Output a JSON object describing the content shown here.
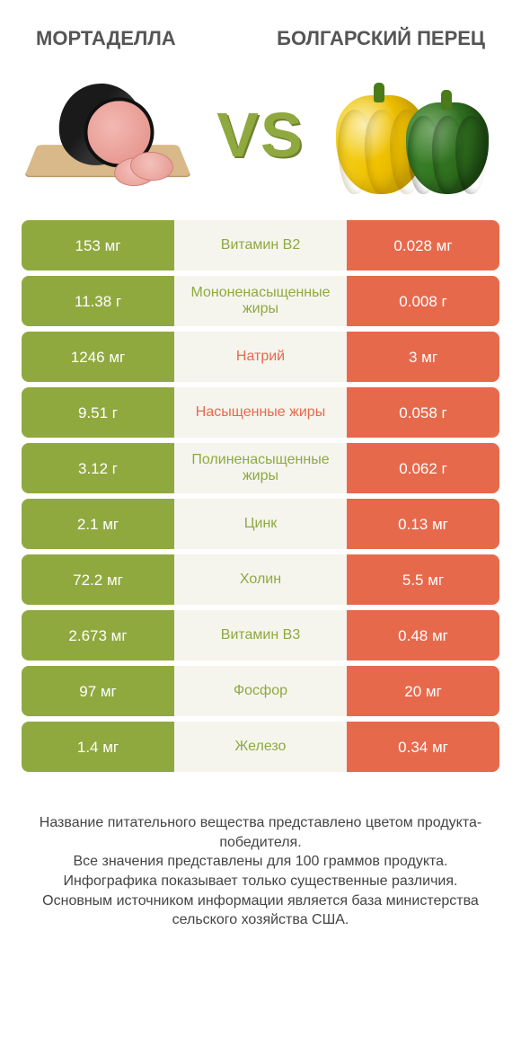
{
  "colors": {
    "left": "#8fa93f",
    "right": "#e7694c",
    "mid_bg": "#f5f5ee",
    "vs": "#8fa93f"
  },
  "header": {
    "left": "МОРТАДЕЛЛА",
    "right": "БОЛГАРСКИЙ ПЕРЕЦ"
  },
  "vs_label": "VS",
  "rows": [
    {
      "left": "153 мг",
      "label": "Витамин B2",
      "right": "0.028 мг",
      "winner": "left"
    },
    {
      "left": "11.38 г",
      "label": "Мононенасыщенные жиры",
      "right": "0.008 г",
      "winner": "left"
    },
    {
      "left": "1246 мг",
      "label": "Натрий",
      "right": "3 мг",
      "winner": "right"
    },
    {
      "left": "9.51 г",
      "label": "Насыщенные жиры",
      "right": "0.058 г",
      "winner": "right"
    },
    {
      "left": "3.12 г",
      "label": "Полиненасыщенные жиры",
      "right": "0.062 г",
      "winner": "left"
    },
    {
      "left": "2.1 мг",
      "label": "Цинк",
      "right": "0.13 мг",
      "winner": "left"
    },
    {
      "left": "72.2 мг",
      "label": "Холин",
      "right": "5.5 мг",
      "winner": "left"
    },
    {
      "left": "2.673 мг",
      "label": "Витамин B3",
      "right": "0.48 мг",
      "winner": "left"
    },
    {
      "left": "97 мг",
      "label": "Фосфор",
      "right": "20 мг",
      "winner": "left"
    },
    {
      "left": "1.4 мг",
      "label": "Железо",
      "right": "0.34 мг",
      "winner": "left"
    }
  ],
  "footer": {
    "line1": "Название питательного вещества представлено цветом продукта-победителя.",
    "line2": "Все значения представлены для 100 граммов продукта.",
    "line3": "Инфографика показывает только существенные различия.",
    "line4": "Основным источником информации является база министерства сельского хозяйства США."
  }
}
